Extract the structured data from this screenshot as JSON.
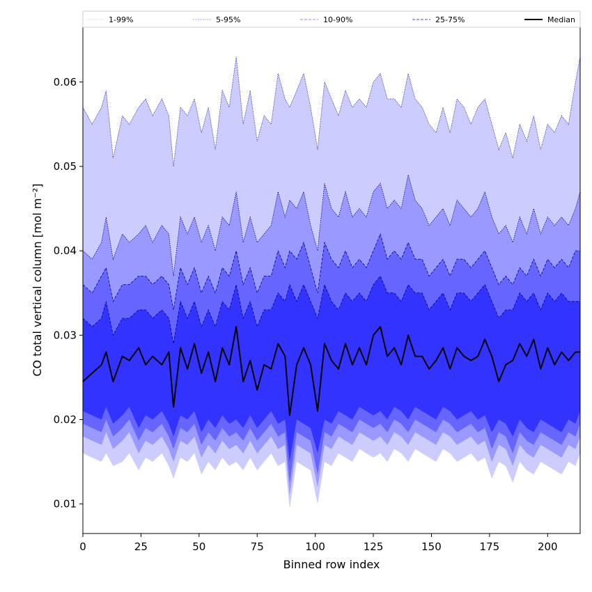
{
  "chart_data": {
    "type": "area",
    "title": "",
    "xlabel": "Binned row index",
    "ylabel": "CO total vertical column [mol m⁻²]",
    "xlim": [
      0,
      214
    ],
    "ylim": [
      0.0065,
      0.0665
    ],
    "xticks": [
      0,
      25,
      50,
      75,
      100,
      125,
      150,
      175,
      200
    ],
    "yticks": [
      0.01,
      0.02,
      0.03,
      0.04,
      0.05,
      0.06
    ],
    "ytick_labels": [
      "0.01",
      "0.02",
      "0.03",
      "0.04",
      "0.05",
      "0.06"
    ],
    "grid": false,
    "legend_position": "top",
    "colors": {
      "band_1_99": "#ccccff",
      "band_5_95": "#9999ff",
      "band_10_90": "#6666ff",
      "band_25_75": "#3333ff",
      "median": "#000000",
      "edge": "#00008b"
    },
    "legend": [
      {
        "label": "1-99%",
        "style": "dotted",
        "color": "#ccccff"
      },
      {
        "label": "5-95%",
        "style": "dotted",
        "color": "#7777ee"
      },
      {
        "label": "10-90%",
        "style": "dashed",
        "color": "#8888ff"
      },
      {
        "label": "25-75%",
        "style": "dashed",
        "color": "#4444ff"
      },
      {
        "label": "Median",
        "style": "solid",
        "color": "#000000"
      }
    ],
    "x": [
      0,
      4,
      8,
      10,
      13,
      17,
      20,
      24,
      27,
      30,
      34,
      37,
      39,
      42,
      45,
      48,
      51,
      54,
      57,
      60,
      63,
      66,
      69,
      72,
      75,
      78,
      81,
      84,
      87,
      89,
      92,
      95,
      98,
      101,
      104,
      107,
      110,
      113,
      116,
      119,
      122,
      125,
      128,
      131,
      134,
      137,
      140,
      143,
      146,
      149,
      152,
      155,
      158,
      161,
      164,
      167,
      170,
      173,
      176,
      179,
      182,
      185,
      188,
      191,
      194,
      197,
      200,
      203,
      206,
      209,
      212,
      214
    ],
    "series": [
      {
        "name": "1-99%",
        "lower": [
          0.016,
          0.0155,
          0.015,
          0.016,
          0.0145,
          0.015,
          0.016,
          0.014,
          0.0155,
          0.015,
          0.016,
          0.0145,
          0.013,
          0.0155,
          0.015,
          0.016,
          0.0135,
          0.015,
          0.014,
          0.0155,
          0.0145,
          0.015,
          0.014,
          0.0155,
          0.014,
          0.015,
          0.016,
          0.0145,
          0.015,
          0.0095,
          0.015,
          0.0145,
          0.014,
          0.01,
          0.015,
          0.0145,
          0.016,
          0.0155,
          0.015,
          0.0165,
          0.016,
          0.0155,
          0.016,
          0.015,
          0.0165,
          0.016,
          0.015,
          0.0165,
          0.016,
          0.0155,
          0.015,
          0.0165,
          0.016,
          0.015,
          0.0155,
          0.016,
          0.015,
          0.0155,
          0.013,
          0.015,
          0.0145,
          0.0125,
          0.015,
          0.014,
          0.0135,
          0.015,
          0.0145,
          0.014,
          0.0135,
          0.015,
          0.0145,
          0.016
        ],
        "upper": [
          0.057,
          0.055,
          0.057,
          0.059,
          0.051,
          0.056,
          0.055,
          0.057,
          0.058,
          0.056,
          0.058,
          0.056,
          0.05,
          0.057,
          0.056,
          0.058,
          0.054,
          0.057,
          0.052,
          0.059,
          0.057,
          0.063,
          0.055,
          0.059,
          0.053,
          0.056,
          0.055,
          0.061,
          0.058,
          0.057,
          0.059,
          0.061,
          0.057,
          0.052,
          0.06,
          0.058,
          0.056,
          0.059,
          0.057,
          0.058,
          0.057,
          0.06,
          0.061,
          0.058,
          0.058,
          0.057,
          0.061,
          0.058,
          0.057,
          0.055,
          0.054,
          0.057,
          0.054,
          0.058,
          0.057,
          0.055,
          0.057,
          0.058,
          0.055,
          0.052,
          0.054,
          0.051,
          0.055,
          0.053,
          0.056,
          0.052,
          0.055,
          0.054,
          0.056,
          0.055,
          0.06,
          0.063
        ]
      },
      {
        "name": "5-95%",
        "lower": [
          0.018,
          0.0175,
          0.017,
          0.0185,
          0.0165,
          0.0175,
          0.0185,
          0.016,
          0.0175,
          0.017,
          0.018,
          0.0165,
          0.015,
          0.0175,
          0.017,
          0.018,
          0.0155,
          0.017,
          0.016,
          0.0175,
          0.0165,
          0.017,
          0.016,
          0.0175,
          0.016,
          0.017,
          0.018,
          0.0165,
          0.017,
          0.011,
          0.017,
          0.0165,
          0.016,
          0.012,
          0.017,
          0.0165,
          0.018,
          0.0175,
          0.017,
          0.0185,
          0.018,
          0.0175,
          0.018,
          0.017,
          0.0185,
          0.018,
          0.017,
          0.0185,
          0.018,
          0.0175,
          0.017,
          0.0185,
          0.018,
          0.017,
          0.0175,
          0.018,
          0.017,
          0.0175,
          0.015,
          0.017,
          0.0165,
          0.0145,
          0.017,
          0.016,
          0.0155,
          0.017,
          0.0165,
          0.016,
          0.0155,
          0.017,
          0.0165,
          0.018
        ],
        "upper": [
          0.04,
          0.039,
          0.041,
          0.044,
          0.039,
          0.042,
          0.041,
          0.042,
          0.043,
          0.041,
          0.043,
          0.042,
          0.037,
          0.044,
          0.042,
          0.044,
          0.041,
          0.043,
          0.04,
          0.044,
          0.043,
          0.047,
          0.041,
          0.044,
          0.041,
          0.042,
          0.043,
          0.047,
          0.044,
          0.046,
          0.045,
          0.047,
          0.043,
          0.04,
          0.048,
          0.045,
          0.044,
          0.047,
          0.044,
          0.045,
          0.044,
          0.047,
          0.048,
          0.045,
          0.046,
          0.045,
          0.049,
          0.046,
          0.045,
          0.043,
          0.044,
          0.045,
          0.043,
          0.046,
          0.045,
          0.044,
          0.045,
          0.047,
          0.044,
          0.042,
          0.043,
          0.041,
          0.044,
          0.042,
          0.045,
          0.042,
          0.044,
          0.043,
          0.044,
          0.043,
          0.045,
          0.047
        ]
      },
      {
        "name": "10-90%",
        "lower": [
          0.0195,
          0.019,
          0.0185,
          0.02,
          0.018,
          0.019,
          0.02,
          0.0175,
          0.019,
          0.0185,
          0.0195,
          0.018,
          0.0165,
          0.019,
          0.0185,
          0.0195,
          0.017,
          0.0185,
          0.0175,
          0.019,
          0.018,
          0.0185,
          0.0175,
          0.019,
          0.0175,
          0.0185,
          0.0195,
          0.018,
          0.0185,
          0.0125,
          0.0185,
          0.018,
          0.0175,
          0.0135,
          0.0185,
          0.018,
          0.0195,
          0.019,
          0.0185,
          0.02,
          0.0195,
          0.019,
          0.0195,
          0.0185,
          0.02,
          0.0195,
          0.0185,
          0.02,
          0.0195,
          0.019,
          0.0185,
          0.02,
          0.0195,
          0.0185,
          0.019,
          0.0195,
          0.0185,
          0.019,
          0.0165,
          0.0185,
          0.018,
          0.016,
          0.0185,
          0.0175,
          0.017,
          0.0185,
          0.018,
          0.0175,
          0.017,
          0.0185,
          0.018,
          0.0195
        ],
        "upper": [
          0.036,
          0.035,
          0.037,
          0.038,
          0.034,
          0.036,
          0.036,
          0.037,
          0.037,
          0.036,
          0.037,
          0.036,
          0.033,
          0.038,
          0.036,
          0.038,
          0.035,
          0.037,
          0.035,
          0.038,
          0.037,
          0.04,
          0.036,
          0.038,
          0.035,
          0.037,
          0.037,
          0.04,
          0.038,
          0.04,
          0.039,
          0.041,
          0.038,
          0.035,
          0.041,
          0.039,
          0.038,
          0.04,
          0.038,
          0.039,
          0.038,
          0.04,
          0.042,
          0.039,
          0.04,
          0.039,
          0.041,
          0.039,
          0.039,
          0.037,
          0.038,
          0.039,
          0.037,
          0.039,
          0.039,
          0.038,
          0.039,
          0.04,
          0.038,
          0.036,
          0.037,
          0.036,
          0.038,
          0.037,
          0.039,
          0.037,
          0.039,
          0.038,
          0.039,
          0.038,
          0.04,
          0.04
        ]
      },
      {
        "name": "25-75%",
        "lower": [
          0.021,
          0.0205,
          0.02,
          0.0215,
          0.0195,
          0.0205,
          0.0215,
          0.019,
          0.0205,
          0.02,
          0.021,
          0.0195,
          0.018,
          0.0205,
          0.02,
          0.021,
          0.0185,
          0.02,
          0.019,
          0.0205,
          0.0195,
          0.02,
          0.019,
          0.0205,
          0.019,
          0.02,
          0.021,
          0.0195,
          0.02,
          0.015,
          0.02,
          0.0195,
          0.019,
          0.016,
          0.02,
          0.0195,
          0.021,
          0.0205,
          0.02,
          0.0215,
          0.021,
          0.0205,
          0.021,
          0.02,
          0.0215,
          0.021,
          0.02,
          0.0215,
          0.021,
          0.0205,
          0.02,
          0.0215,
          0.021,
          0.02,
          0.0205,
          0.021,
          0.02,
          0.0205,
          0.0185,
          0.02,
          0.0195,
          0.018,
          0.02,
          0.019,
          0.0185,
          0.02,
          0.0195,
          0.019,
          0.0185,
          0.02,
          0.0195,
          0.021
        ],
        "upper": [
          0.032,
          0.031,
          0.032,
          0.034,
          0.03,
          0.032,
          0.032,
          0.033,
          0.033,
          0.032,
          0.033,
          0.032,
          0.029,
          0.034,
          0.032,
          0.034,
          0.031,
          0.033,
          0.031,
          0.034,
          0.033,
          0.036,
          0.032,
          0.034,
          0.031,
          0.033,
          0.033,
          0.035,
          0.034,
          0.036,
          0.034,
          0.036,
          0.034,
          0.032,
          0.036,
          0.034,
          0.033,
          0.035,
          0.034,
          0.035,
          0.034,
          0.036,
          0.037,
          0.035,
          0.035,
          0.034,
          0.036,
          0.035,
          0.035,
          0.033,
          0.034,
          0.035,
          0.033,
          0.035,
          0.035,
          0.034,
          0.035,
          0.036,
          0.034,
          0.032,
          0.033,
          0.033,
          0.035,
          0.034,
          0.035,
          0.033,
          0.035,
          0.034,
          0.035,
          0.034,
          0.034,
          0.034
        ]
      },
      {
        "name": "Median",
        "values": [
          0.0245,
          0.0255,
          0.0265,
          0.028,
          0.0245,
          0.0275,
          0.027,
          0.0285,
          0.0265,
          0.0275,
          0.0265,
          0.028,
          0.0215,
          0.0285,
          0.026,
          0.029,
          0.0255,
          0.028,
          0.0245,
          0.0285,
          0.0265,
          0.031,
          0.0245,
          0.027,
          0.0235,
          0.0265,
          0.026,
          0.029,
          0.0275,
          0.0205,
          0.0265,
          0.0285,
          0.0265,
          0.021,
          0.029,
          0.027,
          0.026,
          0.029,
          0.0265,
          0.0285,
          0.0265,
          0.03,
          0.031,
          0.0275,
          0.0285,
          0.0265,
          0.03,
          0.0275,
          0.0275,
          0.026,
          0.027,
          0.0285,
          0.026,
          0.0285,
          0.0275,
          0.027,
          0.0275,
          0.0295,
          0.0275,
          0.0245,
          0.0265,
          0.027,
          0.029,
          0.0275,
          0.0295,
          0.026,
          0.0285,
          0.0265,
          0.028,
          0.027,
          0.028,
          0.028
        ]
      }
    ]
  }
}
